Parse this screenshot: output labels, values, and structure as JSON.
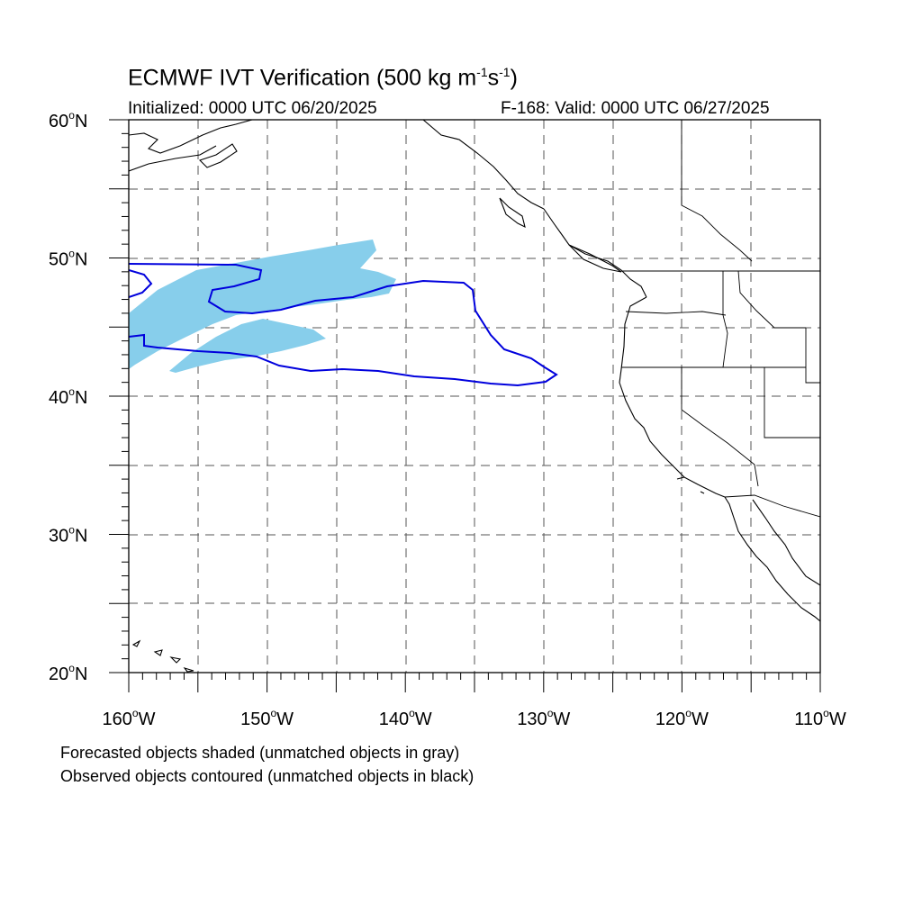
{
  "title": {
    "main": "ECMWF IVT Verification (500 kg m",
    "sup1": "-1",
    "mid": "s",
    "sup2": "-1",
    "end": ")"
  },
  "initialized": "Initialized: 0000 UTC 06/20/2025",
  "valid": "F-168: Valid: 0000 UTC 06/27/2025",
  "notes": [
    "Forecasted objects shaded (unmatched objects in gray)",
    "Observed objects contoured (unmatched objects in black)"
  ],
  "axes": {
    "lat_ticks": [
      {
        "value": 60,
        "num": "60",
        "hemi": "N"
      },
      {
        "value": 50,
        "num": "50",
        "hemi": "N"
      },
      {
        "value": 40,
        "num": "40",
        "hemi": "N"
      },
      {
        "value": 30,
        "num": "30",
        "hemi": "N"
      },
      {
        "value": 20,
        "num": "20",
        "hemi": "N"
      }
    ],
    "lon_ticks": [
      {
        "value": -160,
        "num": "160",
        "hemi": "W"
      },
      {
        "value": -150,
        "num": "150",
        "hemi": "W"
      },
      {
        "value": -140,
        "num": "140",
        "hemi": "W"
      },
      {
        "value": -130,
        "num": "130",
        "hemi": "W"
      },
      {
        "value": -120,
        "num": "120",
        "hemi": "W"
      },
      {
        "value": -110,
        "num": "110",
        "hemi": "W"
      }
    ],
    "lat_range": [
      20,
      60
    ],
    "lon_range": [
      -160,
      -110
    ],
    "grid": "dashed, every 5 degrees"
  },
  "colors": {
    "forecast_fill": "#87ceeb",
    "observed_contour": "#0000dd",
    "coastline": "#000000",
    "grid": "#555555"
  }
}
